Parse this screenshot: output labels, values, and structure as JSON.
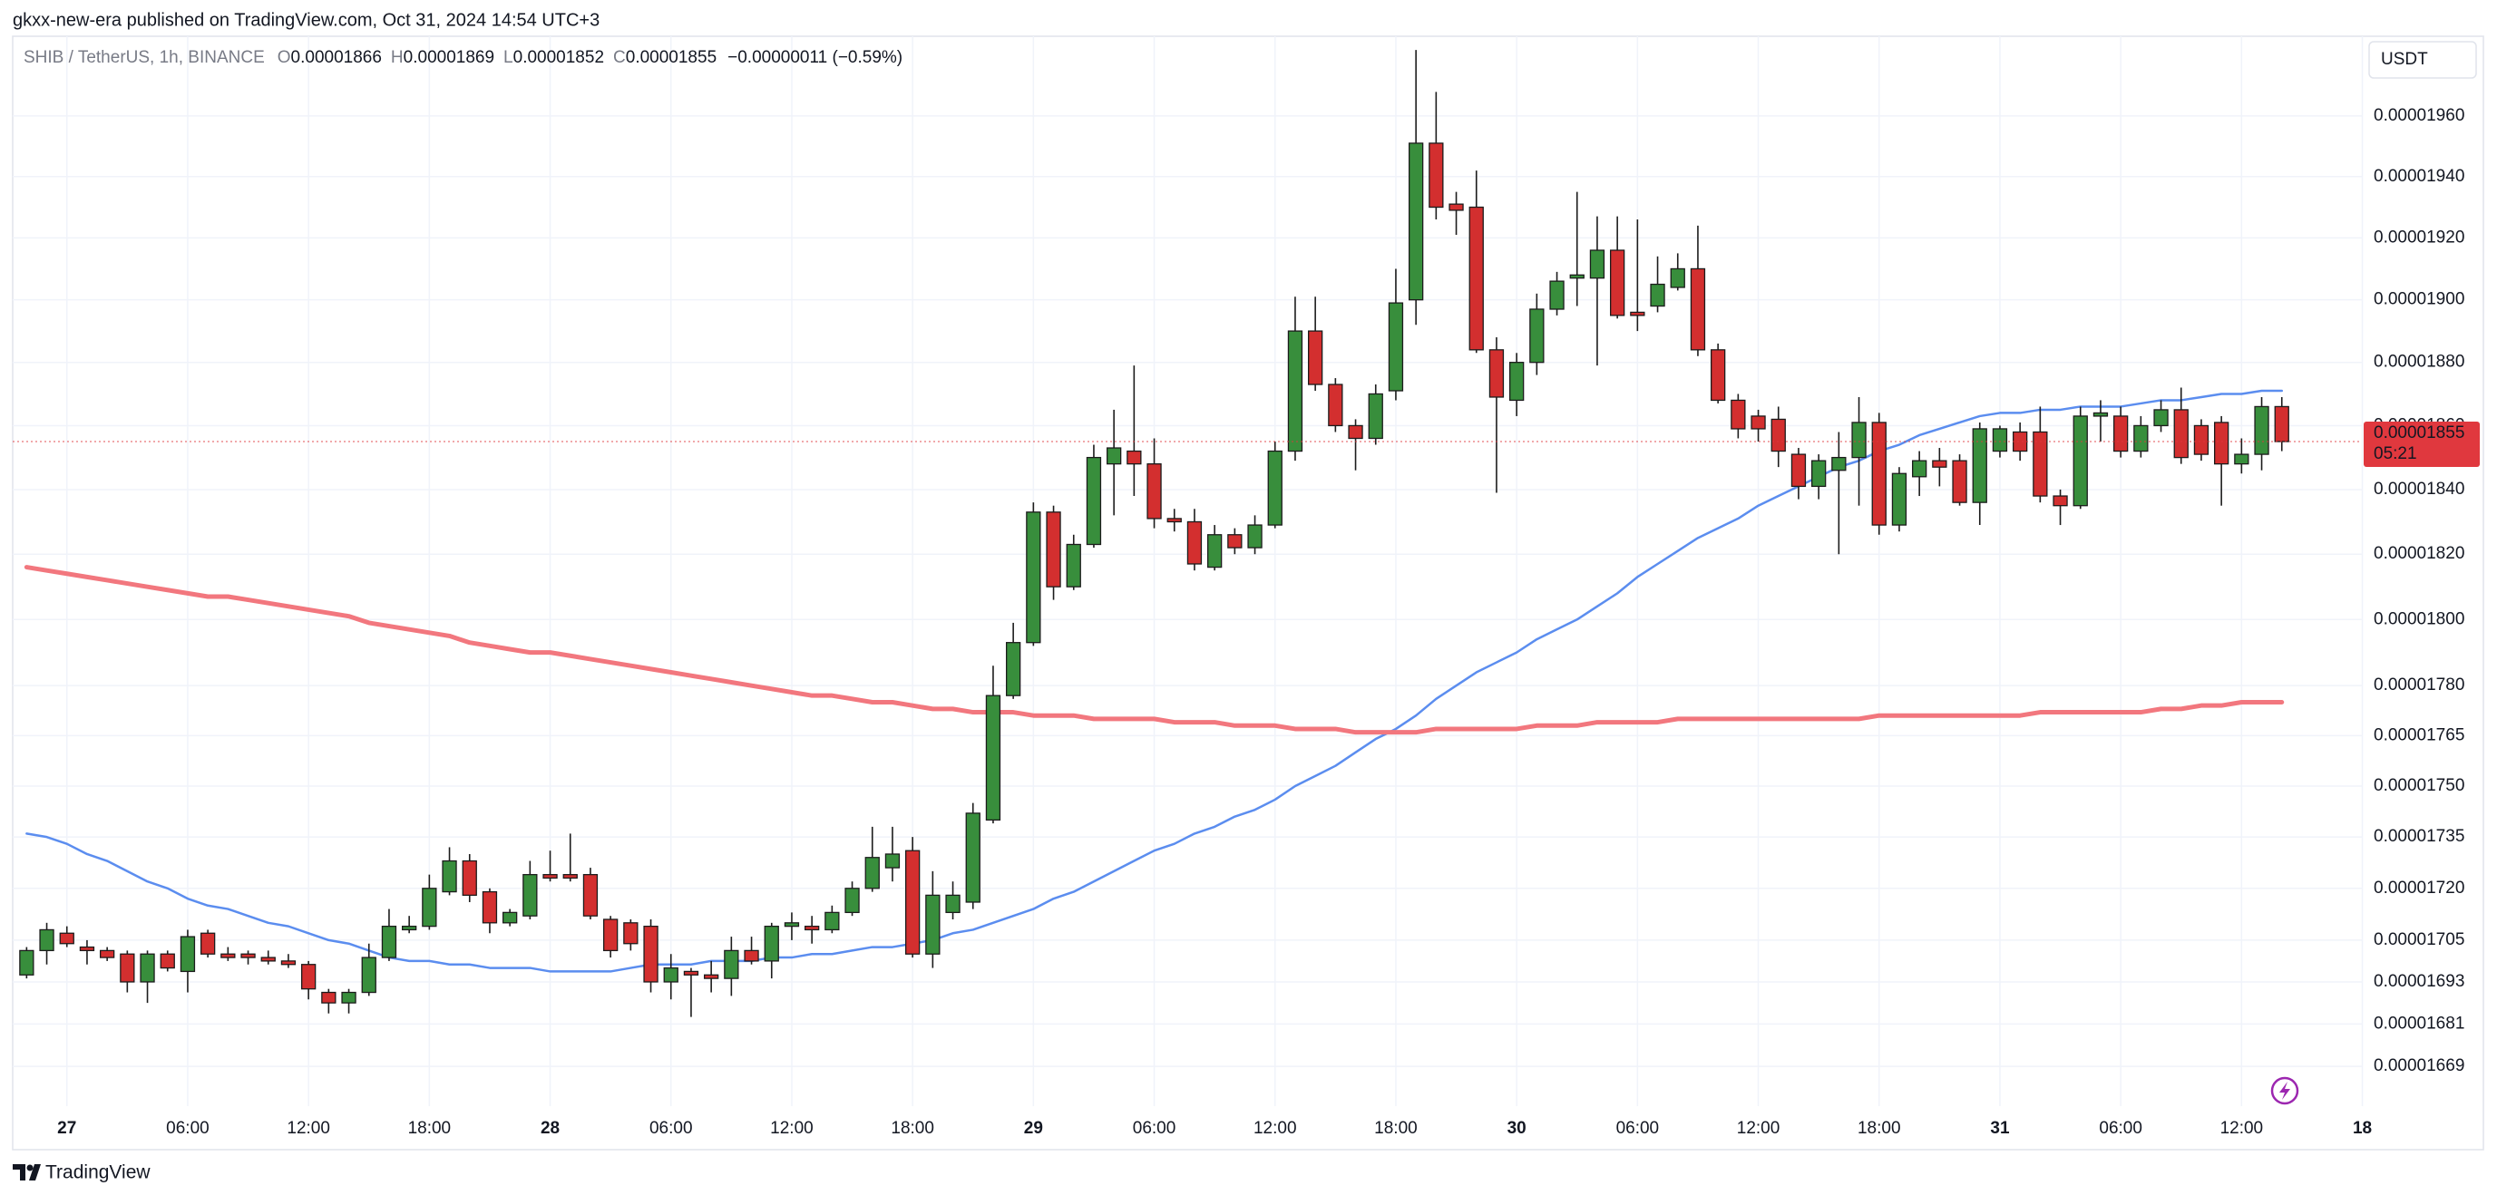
{
  "publisher": "gkxx-new-era published on TradingView.com, Oct 31, 2024 14:54 UTC+3",
  "brand": "TradingView",
  "chart_data": {
    "type": "candlestick",
    "symbol": "SHIB / TetherUS, 1h, BINANCE",
    "ohlc_labels": [
      "O",
      "H",
      "L",
      "C"
    ],
    "change": "−0.00000011 (−0.59%)",
    "currency": "USDT",
    "countdown": "05:21",
    "log": true,
    "grid": true,
    "up_color": "#388e3c",
    "down_color": "#d32f2f",
    "wick_color": "#1c1c1c",
    "price_line_color": "#e0383e",
    "ylim": [
      1.6578e-05,
      1.9866e-05
    ],
    "yticks": [
      {
        "value": 1.96e-05,
        "label": "0.00001960"
      },
      {
        "value": 1.94e-05,
        "label": "0.00001940"
      },
      {
        "value": 1.92e-05,
        "label": "0.00001920"
      },
      {
        "value": 1.9e-05,
        "label": "0.00001900"
      },
      {
        "value": 1.88e-05,
        "label": "0.00001880"
      },
      {
        "value": 1.86e-05,
        "label": "0.00001860"
      },
      {
        "value": 1.84e-05,
        "label": "0.00001840"
      },
      {
        "value": 1.82e-05,
        "label": "0.00001820"
      },
      {
        "value": 1.8e-05,
        "label": "0.00001800"
      },
      {
        "value": 1.78e-05,
        "label": "0.00001780"
      },
      1.765e-05,
      {
        "value": 1.75e-05,
        "label": "0.00001750"
      },
      1.735e-05,
      {
        "value": 1.72e-05,
        "label": "0.00001720"
      },
      1.705e-05,
      1.693e-05,
      1.681e-05,
      1.669e-05
    ],
    "categories": [
      null,
      null,
      "27",
      null,
      null,
      null,
      null,
      null,
      "06:00",
      null,
      null,
      null,
      null,
      null,
      "12:00",
      null,
      null,
      null,
      null,
      null,
      "18:00",
      null,
      null,
      null,
      null,
      null,
      "28",
      null,
      null,
      null,
      null,
      null,
      "06:00",
      null,
      null,
      null,
      null,
      null,
      "12:00",
      null,
      null,
      null,
      null,
      null,
      "18:00",
      null,
      null,
      null,
      null,
      null,
      "29",
      null,
      null,
      null,
      null,
      null,
      "06:00",
      null,
      null,
      null,
      null,
      null,
      "12:00",
      null,
      null,
      null,
      null,
      null,
      "18:00",
      null,
      null,
      null,
      null,
      null,
      "30",
      null,
      null,
      null,
      null,
      null,
      "06:00",
      null,
      null,
      null,
      null,
      null,
      "12:00",
      null,
      null,
      null,
      null,
      null,
      "18:00",
      null,
      null,
      null,
      null,
      null,
      "31",
      null,
      null,
      null,
      null,
      null,
      "06:00",
      null,
      null,
      null,
      null,
      null,
      "12:00",
      null,
      null,
      null,
      null,
      null,
      "18"
    ],
    "open": [
      1.695e-05,
      1.702e-05,
      1.707e-05,
      1.703e-05,
      1.702e-05,
      1.701e-05,
      1.693e-05,
      1.701e-05,
      1.696e-05,
      1.707e-05,
      1.701e-05,
      1.701e-05,
      1.7e-05,
      1.699e-05,
      1.698e-05,
      1.69e-05,
      1.687e-05,
      1.69e-05,
      1.7e-05,
      1.708e-05,
      1.709e-05,
      1.719e-05,
      1.728e-05,
      1.719e-05,
      1.71e-05,
      1.712e-05,
      1.724e-05,
      1.724e-05,
      1.724e-05,
      1.711e-05,
      1.71e-05,
      1.709e-05,
      1.693e-05,
      1.696e-05,
      1.695e-05,
      1.694e-05,
      1.702e-05,
      1.699e-05,
      1.709e-05,
      1.709e-05,
      1.708e-05,
      1.713e-05,
      1.72e-05,
      1.726e-05,
      1.731e-05,
      1.701e-05,
      1.713e-05,
      1.716e-05,
      1.74e-05,
      1.777e-05,
      1.793e-05,
      1.833e-05,
      1.81e-05,
      1.823e-05,
      1.848e-05,
      1.852e-05,
      1.848e-05,
      1.831e-05,
      1.83e-05,
      1.816e-05,
      1.826e-05,
      1.822e-05,
      1.829e-05,
      1.852e-05,
      1.89e-05,
      1.873e-05,
      1.86e-05,
      1.856e-05,
      1.871e-05,
      1.9e-05,
      1.951e-05,
      1.931e-05,
      1.93e-05,
      1.884e-05,
      1.868e-05,
      1.88e-05,
      1.897e-05,
      1.907e-05,
      1.907e-05,
      1.916e-05,
      1.896e-05,
      1.898e-05,
      1.904e-05,
      1.91e-05,
      1.884e-05,
      1.868e-05,
      1.863e-05,
      1.862e-05,
      1.851e-05,
      1.841e-05,
      1.846e-05,
      1.85e-05,
      1.861e-05,
      1.829e-05,
      1.844e-05,
      1.849e-05,
      1.849e-05,
      1.836e-05,
      1.852e-05,
      1.858e-05,
      1.858e-05,
      1.838e-05,
      1.835e-05,
      1.863e-05,
      1.863e-05,
      1.852e-05,
      1.86e-05,
      1.865e-05,
      1.86e-05,
      1.861e-05,
      1.848e-05,
      1.851e-05,
      1.866e-05,
      null,
      null,
      null,
      null
    ],
    "high": [
      1.703e-05,
      1.71e-05,
      1.709e-05,
      1.705e-05,
      1.703e-05,
      1.702e-05,
      1.702e-05,
      1.702e-05,
      1.708e-05,
      1.708e-05,
      1.703e-05,
      1.702e-05,
      1.702e-05,
      1.701e-05,
      1.699e-05,
      1.691e-05,
      1.691e-05,
      1.704e-05,
      1.714e-05,
      1.712e-05,
      1.724e-05,
      1.732e-05,
      1.73e-05,
      1.72e-05,
      1.714e-05,
      1.728e-05,
      1.731e-05,
      1.736e-05,
      1.726e-05,
      1.712e-05,
      1.711e-05,
      1.711e-05,
      1.701e-05,
      1.697e-05,
      1.699e-05,
      1.706e-05,
      1.706e-05,
      1.71e-05,
      1.713e-05,
      1.712e-05,
      1.715e-05,
      1.722e-05,
      1.738e-05,
      1.738e-05,
      1.735e-05,
      1.725e-05,
      1.722e-05,
      1.745e-05,
      1.786e-05,
      1.799e-05,
      1.836e-05,
      1.835e-05,
      1.826e-05,
      1.854e-05,
      1.865e-05,
      1.879e-05,
      1.856e-05,
      1.834e-05,
      1.834e-05,
      1.829e-05,
      1.828e-05,
      1.832e-05,
      1.855e-05,
      1.901e-05,
      1.901e-05,
      1.875e-05,
      1.862e-05,
      1.873e-05,
      1.91e-05,
      1.982e-05,
      1.968e-05,
      1.935e-05,
      1.942e-05,
      1.888e-05,
      1.883e-05,
      1.902e-05,
      1.909e-05,
      1.935e-05,
      1.927e-05,
      1.927e-05,
      1.926e-05,
      1.914e-05,
      1.915e-05,
      1.924e-05,
      1.886e-05,
      1.87e-05,
      1.865e-05,
      1.866e-05,
      1.853e-05,
      1.851e-05,
      1.858e-05,
      1.869e-05,
      1.864e-05,
      1.847e-05,
      1.852e-05,
      1.853e-05,
      1.851e-05,
      1.861e-05,
      1.86e-05,
      1.861e-05,
      1.866e-05,
      1.84e-05,
      1.866e-05,
      1.868e-05,
      1.866e-05,
      1.863e-05,
      1.868e-05,
      1.872e-05,
      1.862e-05,
      1.863e-05,
      1.856e-05,
      1.869e-05,
      1.869e-05,
      null,
      null,
      null,
      null
    ],
    "low": [
      1.694e-05,
      1.698e-05,
      1.703e-05,
      1.698e-05,
      1.699e-05,
      1.69e-05,
      1.687e-05,
      1.696e-05,
      1.69e-05,
      1.7e-05,
      1.699e-05,
      1.698e-05,
      1.698e-05,
      1.697e-05,
      1.688e-05,
      1.684e-05,
      1.684e-05,
      1.689e-05,
      1.699e-05,
      1.707e-05,
      1.708e-05,
      1.718e-05,
      1.716e-05,
      1.707e-05,
      1.709e-05,
      1.711e-05,
      1.722e-05,
      1.722e-05,
      1.711e-05,
      1.7e-05,
      1.702e-05,
      1.69e-05,
      1.688e-05,
      1.683e-05,
      1.69e-05,
      1.689e-05,
      1.698e-05,
      1.694e-05,
      1.705e-05,
      1.704e-05,
      1.707e-05,
      1.712e-05,
      1.719e-05,
      1.722e-05,
      1.7e-05,
      1.697e-05,
      1.711e-05,
      1.714e-05,
      1.739e-05,
      1.776e-05,
      1.792e-05,
      1.806e-05,
      1.809e-05,
      1.822e-05,
      1.832e-05,
      1.838e-05,
      1.828e-05,
      1.827e-05,
      1.815e-05,
      1.815e-05,
      1.82e-05,
      1.82e-05,
      1.828e-05,
      1.849e-05,
      1.871e-05,
      1.858e-05,
      1.846e-05,
      1.854e-05,
      1.868e-05,
      1.892e-05,
      1.926e-05,
      1.921e-05,
      1.883e-05,
      1.839e-05,
      1.863e-05,
      1.876e-05,
      1.895e-05,
      1.898e-05,
      1.879e-05,
      1.894e-05,
      1.89e-05,
      1.896e-05,
      1.903e-05,
      1.882e-05,
      1.867e-05,
      1.856e-05,
      1.855e-05,
      1.847e-05,
      1.837e-05,
      1.837e-05,
      1.82e-05,
      1.835e-05,
      1.826e-05,
      1.827e-05,
      1.838e-05,
      1.841e-05,
      1.835e-05,
      1.829e-05,
      1.85e-05,
      1.849e-05,
      1.836e-05,
      1.829e-05,
      1.834e-05,
      1.855e-05,
      1.85e-05,
      1.85e-05,
      1.858e-05,
      1.848e-05,
      1.849e-05,
      1.835e-05,
      1.845e-05,
      1.846e-05,
      1.852e-05,
      null,
      null,
      null,
      null
    ],
    "close": [
      1.702e-05,
      1.708e-05,
      1.704e-05,
      1.702e-05,
      1.7e-05,
      1.693e-05,
      1.701e-05,
      1.697e-05,
      1.706e-05,
      1.701e-05,
      1.7e-05,
      1.7e-05,
      1.699e-05,
      1.698e-05,
      1.691e-05,
      1.687e-05,
      1.69e-05,
      1.7e-05,
      1.709e-05,
      1.709e-05,
      1.72e-05,
      1.728e-05,
      1.718e-05,
      1.71e-05,
      1.713e-05,
      1.724e-05,
      1.723e-05,
      1.723e-05,
      1.712e-05,
      1.702e-05,
      1.704e-05,
      1.693e-05,
      1.697e-05,
      1.695e-05,
      1.694e-05,
      1.702e-05,
      1.699e-05,
      1.709e-05,
      1.71e-05,
      1.708e-05,
      1.713e-05,
      1.72e-05,
      1.729e-05,
      1.73e-05,
      1.701e-05,
      1.718e-05,
      1.718e-05,
      1.742e-05,
      1.777e-05,
      1.793e-05,
      1.833e-05,
      1.81e-05,
      1.823e-05,
      1.85e-05,
      1.853e-05,
      1.848e-05,
      1.831e-05,
      1.83e-05,
      1.817e-05,
      1.826e-05,
      1.822e-05,
      1.829e-05,
      1.852e-05,
      1.89e-05,
      1.873e-05,
      1.86e-05,
      1.856e-05,
      1.87e-05,
      1.899e-05,
      1.951e-05,
      1.93e-05,
      1.929e-05,
      1.884e-05,
      1.869e-05,
      1.88e-05,
      1.897e-05,
      1.906e-05,
      1.908e-05,
      1.916e-05,
      1.895e-05,
      1.895e-05,
      1.905e-05,
      1.91e-05,
      1.884e-05,
      1.868e-05,
      1.859e-05,
      1.859e-05,
      1.852e-05,
      1.841e-05,
      1.849e-05,
      1.85e-05,
      1.861e-05,
      1.829e-05,
      1.845e-05,
      1.849e-05,
      1.847e-05,
      1.836e-05,
      1.859e-05,
      1.859e-05,
      1.852e-05,
      1.838e-05,
      1.835e-05,
      1.863e-05,
      1.864e-05,
      1.852e-05,
      1.86e-05,
      1.865e-05,
      1.85e-05,
      1.851e-05,
      1.848e-05,
      1.851e-05,
      1.866e-05,
      1.855e-05,
      null,
      null,
      null,
      null
    ],
    "series": [
      {
        "color": "#5b8def",
        "values": [
          1.736e-05,
          1.735e-05,
          1.733e-05,
          1.73e-05,
          1.728e-05,
          1.725e-05,
          1.722e-05,
          1.72e-05,
          1.717e-05,
          1.715e-05,
          1.714e-05,
          1.712e-05,
          1.71e-05,
          1.709e-05,
          1.707e-05,
          1.705e-05,
          1.704e-05,
          1.702e-05,
          1.7e-05,
          1.699e-05,
          1.699e-05,
          1.698e-05,
          1.698e-05,
          1.697e-05,
          1.697e-05,
          1.697e-05,
          1.696e-05,
          1.696e-05,
          1.696e-05,
          1.696e-05,
          1.697e-05,
          1.698e-05,
          1.698e-05,
          1.698e-05,
          1.699e-05,
          1.699e-05,
          1.699e-05,
          1.7e-05,
          1.7e-05,
          1.701e-05,
          1.701e-05,
          1.702e-05,
          1.703e-05,
          1.703e-05,
          1.704e-05,
          1.705e-05,
          1.707e-05,
          1.708e-05,
          1.71e-05,
          1.712e-05,
          1.714e-05,
          1.717e-05,
          1.719e-05,
          1.722e-05,
          1.725e-05,
          1.728e-05,
          1.731e-05,
          1.733e-05,
          1.736e-05,
          1.738e-05,
          1.741e-05,
          1.743e-05,
          1.746e-05,
          1.75e-05,
          1.753e-05,
          1.756e-05,
          1.76e-05,
          1.764e-05,
          1.767e-05,
          1.771e-05,
          1.776e-05,
          1.78e-05,
          1.784e-05,
          1.787e-05,
          1.79e-05,
          1.794e-05,
          1.797e-05,
          1.8e-05,
          1.804e-05,
          1.808e-05,
          1.813e-05,
          1.817e-05,
          1.821e-05,
          1.825e-05,
          1.828e-05,
          1.831e-05,
          1.835e-05,
          1.838e-05,
          1.841e-05,
          1.844e-05,
          1.847e-05,
          1.849e-05,
          1.852e-05,
          1.854e-05,
          1.857e-05,
          1.859e-05,
          1.861e-05,
          1.863e-05,
          1.864e-05,
          1.864e-05,
          1.865e-05,
          1.865e-05,
          1.866e-05,
          1.866e-05,
          1.866e-05,
          1.867e-05,
          1.868e-05,
          1.868e-05,
          1.869e-05,
          1.87e-05,
          1.87e-05,
          1.871e-05,
          1.871e-05,
          null,
          null,
          null,
          null
        ]
      },
      {
        "color": "#f2777e",
        "values": [
          1.816e-05,
          1.815e-05,
          1.814e-05,
          1.813e-05,
          1.812e-05,
          1.811e-05,
          1.81e-05,
          1.809e-05,
          1.808e-05,
          1.807e-05,
          1.807e-05,
          1.806e-05,
          1.805e-05,
          1.804e-05,
          1.803e-05,
          1.802e-05,
          1.801e-05,
          1.799e-05,
          1.798e-05,
          1.797e-05,
          1.796e-05,
          1.795e-05,
          1.793e-05,
          1.792e-05,
          1.791e-05,
          1.79e-05,
          1.79e-05,
          1.789e-05,
          1.788e-05,
          1.787e-05,
          1.786e-05,
          1.785e-05,
          1.784e-05,
          1.783e-05,
          1.782e-05,
          1.781e-05,
          1.78e-05,
          1.779e-05,
          1.778e-05,
          1.777e-05,
          1.777e-05,
          1.776e-05,
          1.775e-05,
          1.775e-05,
          1.774e-05,
          1.773e-05,
          1.773e-05,
          1.772e-05,
          1.772e-05,
          1.772e-05,
          1.771e-05,
          1.771e-05,
          1.771e-05,
          1.77e-05,
          1.77e-05,
          1.77e-05,
          1.77e-05,
          1.769e-05,
          1.769e-05,
          1.769e-05,
          1.768e-05,
          1.768e-05,
          1.768e-05,
          1.767e-05,
          1.767e-05,
          1.767e-05,
          1.766e-05,
          1.766e-05,
          1.766e-05,
          1.766e-05,
          1.767e-05,
          1.767e-05,
          1.767e-05,
          1.767e-05,
          1.767e-05,
          1.768e-05,
          1.768e-05,
          1.768e-05,
          1.769e-05,
          1.769e-05,
          1.769e-05,
          1.769e-05,
          1.77e-05,
          1.77e-05,
          1.77e-05,
          1.77e-05,
          1.77e-05,
          1.77e-05,
          1.77e-05,
          1.77e-05,
          1.77e-05,
          1.77e-05,
          1.771e-05,
          1.771e-05,
          1.771e-05,
          1.771e-05,
          1.771e-05,
          1.771e-05,
          1.771e-05,
          1.771e-05,
          1.772e-05,
          1.772e-05,
          1.772e-05,
          1.772e-05,
          1.772e-05,
          1.772e-05,
          1.773e-05,
          1.773e-05,
          1.774e-05,
          1.774e-05,
          1.775e-05,
          1.775e-05,
          1.775e-05,
          null,
          null,
          null,
          null
        ]
      }
    ]
  }
}
